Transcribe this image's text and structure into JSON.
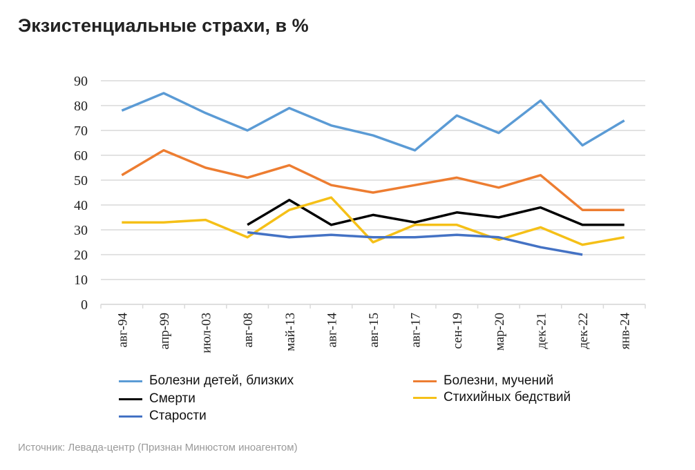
{
  "title": "Экзистенциальные страхи, в %",
  "source": "Источник: Левада-центр (Признан Минюстом иноагентом)",
  "chart_data": {
    "type": "line",
    "title": "Экзистенциальные страхи, в %",
    "categories": [
      "авг-94",
      "апр-99",
      "июл-03",
      "авг-08",
      "май-13",
      "авг-14",
      "авг-15",
      "авг-17",
      "сен-19",
      "мар-20",
      "дек-21",
      "дек-22",
      "янв-24"
    ],
    "ylim": [
      0,
      90
    ],
    "yticks": [
      0,
      10,
      20,
      30,
      40,
      50,
      60,
      70,
      80,
      90
    ],
    "grid": true,
    "legend_position": "bottom",
    "series": [
      {
        "name": "Болезни детей, близких",
        "color": "#5b9bd5",
        "values": [
          78,
          85,
          77,
          70,
          79,
          72,
          68,
          62,
          76,
          69,
          82,
          64,
          74
        ]
      },
      {
        "name": "Болезни, мучений",
        "color": "#ed7d31",
        "values": [
          52,
          62,
          55,
          51,
          56,
          48,
          45,
          48,
          51,
          47,
          52,
          38,
          38
        ]
      },
      {
        "name": "Смерти",
        "color": "#000000",
        "values": [
          null,
          null,
          null,
          32,
          42,
          32,
          36,
          33,
          37,
          35,
          39,
          32,
          32
        ]
      },
      {
        "name": "Стихийных бедствий",
        "color": "#f5c018",
        "values": [
          33,
          33,
          34,
          27,
          38,
          43,
          25,
          32,
          32,
          26,
          31,
          24,
          27
        ]
      },
      {
        "name": "Старости",
        "color": "#4472c4",
        "values": [
          null,
          null,
          null,
          29,
          27,
          28,
          27,
          27,
          28,
          27,
          23,
          20,
          null
        ]
      }
    ]
  }
}
